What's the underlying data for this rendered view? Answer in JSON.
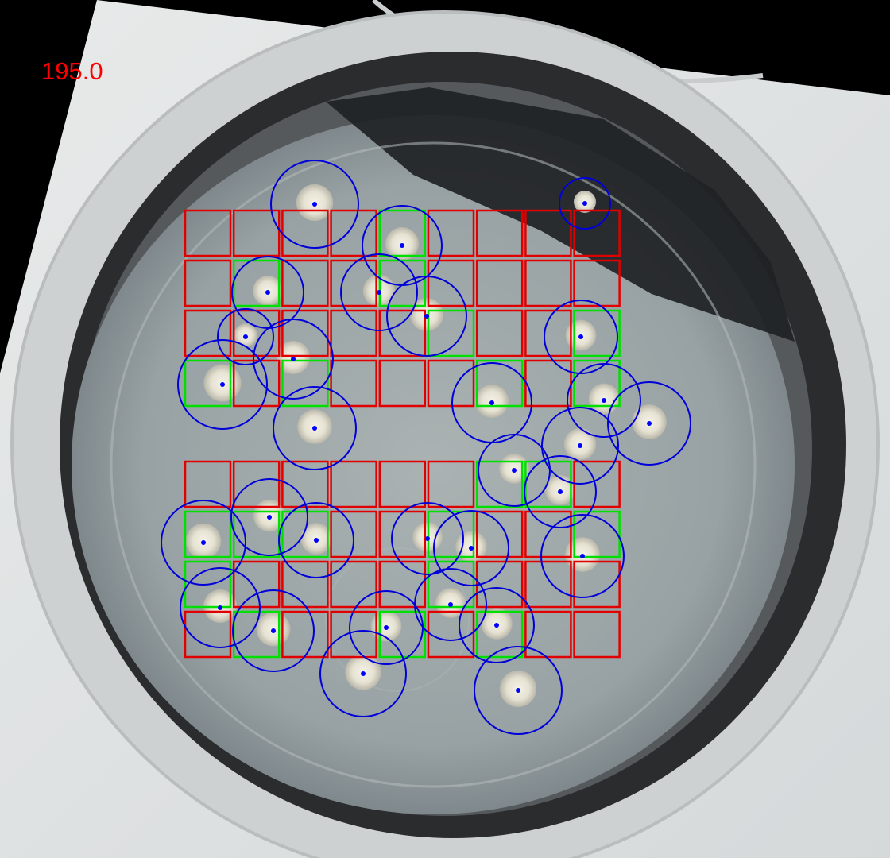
{
  "overlay": {
    "angle_readout": "195.0",
    "colors": {
      "cell_empty": "#e00000",
      "cell_occupied": "#00e000",
      "colony_circle": "#0000d8",
      "colony_center": "#0000ff",
      "readout": "#ff0000"
    }
  },
  "grid": {
    "top_block": [
      [
        "empty",
        "empty",
        "empty",
        "empty",
        "occupied",
        "empty",
        "empty",
        "empty",
        "empty"
      ],
      [
        "empty",
        "occupied",
        "empty",
        "empty",
        "occupied",
        "empty",
        "empty",
        "empty",
        "empty"
      ],
      [
        "empty",
        "empty",
        "empty",
        "empty",
        "empty",
        "occupied",
        "empty",
        "empty",
        "occupied"
      ],
      [
        "occupied",
        "empty",
        "occupied",
        "empty",
        "empty",
        "empty",
        "occupied",
        "empty",
        "occupied"
      ]
    ],
    "bottom_block": [
      [
        "empty",
        "empty",
        "empty",
        "empty",
        "empty",
        "empty",
        "occupied",
        "occupied",
        "empty"
      ],
      [
        "occupied",
        "occupied",
        "occupied",
        "empty",
        "empty",
        "occupied",
        "empty",
        "empty",
        "occupied"
      ],
      [
        "occupied",
        "empty",
        "empty",
        "empty",
        "empty",
        "occupied",
        "empty",
        "empty",
        "empty"
      ],
      [
        "empty",
        "occupied",
        "empty",
        "empty",
        "occupied",
        "empty",
        "occupied",
        "empty",
        "empty"
      ]
    ]
  },
  "colony_count": 36
}
